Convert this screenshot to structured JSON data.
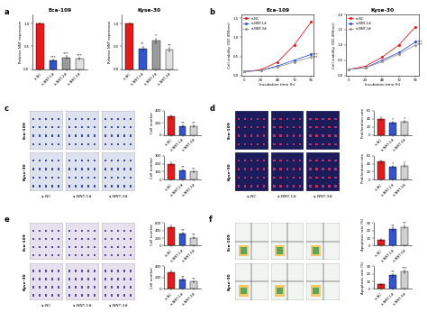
{
  "panel_labels": [
    "a",
    "b",
    "c",
    "d",
    "e",
    "f"
  ],
  "chart_data": [
    {
      "panel": "a",
      "type": "bar",
      "title": "Eca-109",
      "y_label": "Relative NNT expression",
      "categories": [
        "si-NC",
        "si-NNT-1#",
        "si-NNT-2#",
        "si-NNT-3#"
      ],
      "values": [
        1.0,
        0.18,
        0.25,
        0.22
      ],
      "errors": [
        0.0,
        0.02,
        0.03,
        0.02
      ],
      "colors": [
        "#e41a1c",
        "#3355cc",
        "#9a9a9a",
        "#e0e0e0"
      ],
      "significance": [
        null,
        "***",
        "***",
        "***"
      ],
      "ylim": [
        0,
        1.2
      ],
      "yticks": [
        0.0,
        0.5,
        1.0
      ]
    },
    {
      "panel": "a",
      "type": "bar",
      "title": "Kyse-30",
      "y_label": "Relative NNT expression",
      "categories": [
        "si-NC",
        "si-NNT-1#",
        "si-NNT-2#",
        "si-NNT-3#"
      ],
      "values": [
        1.0,
        0.45,
        0.62,
        0.42
      ],
      "errors": [
        0.0,
        0.04,
        0.05,
        0.04
      ],
      "colors": [
        "#e41a1c",
        "#3355cc",
        "#9a9a9a",
        "#e0e0e0"
      ],
      "significance": [
        null,
        "**",
        "*",
        "**"
      ],
      "ylim": [
        0,
        1.2
      ],
      "yticks": [
        0.0,
        0.5,
        1.0
      ]
    },
    {
      "panel": "b",
      "type": "line",
      "title": "Eca-109",
      "x_label": "Incubation time (h)",
      "y_label": "Cell viability (OD 490nm)",
      "x": [
        0,
        24,
        48,
        72,
        96
      ],
      "xlim": [
        -4,
        100
      ],
      "xticks": [
        0,
        24,
        48,
        72,
        96
      ],
      "ylim": [
        0,
        1.6
      ],
      "yticks": [
        0.0,
        0.5,
        1.0,
        1.5
      ],
      "legend": "upper left",
      "series": [
        {
          "name": "si-NC",
          "color": "#e41a1c",
          "marker": "o",
          "values": [
            0.1,
            0.15,
            0.35,
            0.8,
            1.4
          ]
        },
        {
          "name": "si-NNT-1#",
          "color": "#3355cc",
          "marker": "o",
          "values": [
            0.1,
            0.13,
            0.25,
            0.4,
            0.55
          ],
          "significance": "***"
        },
        {
          "name": "si-NNT-3#",
          "color": "#9a9a9a",
          "marker": "o",
          "values": [
            0.1,
            0.13,
            0.22,
            0.35,
            0.48
          ],
          "significance": "***"
        }
      ]
    },
    {
      "panel": "b",
      "type": "line",
      "title": "Kyse-30",
      "x_label": "Incubation time (h)",
      "y_label": "Cell viability (OD 490nm)",
      "x": [
        0,
        24,
        48,
        72,
        96
      ],
      "xlim": [
        -4,
        100
      ],
      "xticks": [
        0,
        24,
        48,
        72,
        96
      ],
      "ylim": [
        0,
        2.0
      ],
      "yticks": [
        0.0,
        0.5,
        1.0,
        1.5,
        2.0
      ],
      "legend": "upper left",
      "series": [
        {
          "name": "si-NC",
          "color": "#e41a1c",
          "marker": "o",
          "values": [
            0.2,
            0.3,
            0.6,
            1.0,
            1.6
          ]
        },
        {
          "name": "si-NNT-1#",
          "color": "#3355cc",
          "marker": "o",
          "values": [
            0.2,
            0.25,
            0.5,
            0.75,
            1.1
          ],
          "significance": "***"
        },
        {
          "name": "si-NNT-3#",
          "color": "#9a9a9a",
          "marker": "o",
          "values": [
            0.2,
            0.25,
            0.45,
            0.7,
            1.0
          ],
          "significance": "***"
        }
      ]
    },
    {
      "panel": "c",
      "type": "bar",
      "y_label": "Cell number",
      "categories": [
        "si-NC",
        "si-NNT-1#",
        "si-NNT-3#"
      ],
      "values": [
        300,
        150,
        140
      ],
      "errors": [
        20,
        15,
        12
      ],
      "colors": [
        "#e41a1c",
        "#3355cc",
        "#d0d0d0"
      ],
      "significance": [
        null,
        "**",
        "**"
      ],
      "ylim": [
        0,
        400
      ],
      "yticks": [
        0,
        200,
        400
      ]
    },
    {
      "panel": "c",
      "type": "bar",
      "y_label": "Cell number",
      "categories": [
        "si-NC",
        "si-NNT-1#",
        "si-NNT-3#"
      ],
      "values": [
        200,
        120,
        100
      ],
      "errors": [
        15,
        10,
        10
      ],
      "colors": [
        "#e41a1c",
        "#3355cc",
        "#d0d0d0"
      ],
      "significance": [
        null,
        "**",
        "**"
      ],
      "ylim": [
        0,
        300
      ],
      "yticks": [
        0,
        100,
        200,
        300
      ]
    },
    {
      "panel": "d",
      "type": "bar",
      "y_label": "Proliferation rate",
      "categories": [
        "si-NC",
        "si-NNT-1#",
        "si-NNT-3#"
      ],
      "values": [
        40,
        30,
        33
      ],
      "errors": [
        3,
        2,
        2
      ],
      "colors": [
        "#e41a1c",
        "#3355cc",
        "#d0d0d0"
      ],
      "significance": [
        null,
        "*",
        "*"
      ],
      "ylim": [
        0,
        60
      ],
      "yticks": [
        0,
        20,
        40,
        60
      ]
    },
    {
      "panel": "d",
      "type": "bar",
      "y_label": "Proliferation rate",
      "categories": [
        "si-NC",
        "si-NNT-1#",
        "si-NNT-3#"
      ],
      "values": [
        45,
        32,
        35
      ],
      "errors": [
        3,
        2,
        3
      ],
      "colors": [
        "#e41a1c",
        "#3355cc",
        "#d0d0d0"
      ],
      "significance": [
        null,
        "*",
        "*"
      ],
      "ylim": [
        0,
        60
      ],
      "yticks": [
        0,
        20,
        40,
        60
      ]
    },
    {
      "panel": "e",
      "type": "bar",
      "y_label": "Cell number",
      "categories": [
        "si-NC",
        "si-NNT-1#",
        "si-NNT-3#"
      ],
      "values": [
        500,
        320,
        210
      ],
      "errors": [
        40,
        30,
        20
      ],
      "colors": [
        "#e41a1c",
        "#3355cc",
        "#d0d0d0"
      ],
      "significance": [
        null,
        "**",
        "**"
      ],
      "ylim": [
        0,
        600
      ],
      "yticks": [
        0,
        200,
        400,
        600
      ]
    },
    {
      "panel": "e",
      "type": "bar",
      "y_label": "Cell number",
      "categories": [
        "si-NC",
        "si-NNT-1#",
        "si-NNT-3#"
      ],
      "values": [
        300,
        160,
        130
      ],
      "errors": [
        25,
        15,
        12
      ],
      "colors": [
        "#e41a1c",
        "#3355cc",
        "#d0d0d0"
      ],
      "significance": [
        null,
        "**",
        "**"
      ],
      "ylim": [
        0,
        400
      ],
      "yticks": [
        0,
        200,
        400
      ]
    },
    {
      "panel": "f",
      "type": "bar",
      "y_label": "Apoptosis rate (%)",
      "categories": [
        "si-NC",
        "si-NNT-1#",
        "si-NNT-3#"
      ],
      "values": [
        8,
        22,
        25
      ],
      "errors": [
        1,
        2,
        2
      ],
      "colors": [
        "#e41a1c",
        "#3355cc",
        "#d0d0d0"
      ],
      "significance": [
        null,
        "**",
        "**"
      ],
      "ylim": [
        0,
        30
      ],
      "yticks": [
        0,
        10,
        20,
        30
      ]
    },
    {
      "panel": "f",
      "type": "bar",
      "y_label": "Apoptosis rate (%)",
      "categories": [
        "si-NC",
        "si-NNT-1#",
        "si-NNT-3#"
      ],
      "values": [
        6,
        18,
        23
      ],
      "errors": [
        1,
        2,
        2
      ],
      "colors": [
        "#e41a1c",
        "#3355cc",
        "#d0d0d0"
      ],
      "significance": [
        null,
        "**",
        "***"
      ],
      "ylim": [
        0,
        30
      ],
      "yticks": [
        0,
        10,
        20,
        30
      ]
    }
  ],
  "image_panels": [
    {
      "panel": "c",
      "rows": [
        "Eca-109",
        "Kyse-30"
      ],
      "columns": [
        "si-NC",
        "si-NNT-1#",
        "si-NNT-3#"
      ]
    },
    {
      "panel": "d",
      "rows": [
        "Eca-109",
        "Kyse-30"
      ],
      "columns": [
        "si-NC",
        "si-NNT-1#",
        "si-NNT-3#"
      ]
    },
    {
      "panel": "e",
      "rows": [
        "Eca-109",
        "Kyse-30"
      ],
      "columns": [
        "si-NC",
        "si-NNT-1#",
        "si-NNT-3#"
      ]
    },
    {
      "panel": "f",
      "rows": [
        "Eca-109",
        "Kyse-30"
      ]
    }
  ]
}
